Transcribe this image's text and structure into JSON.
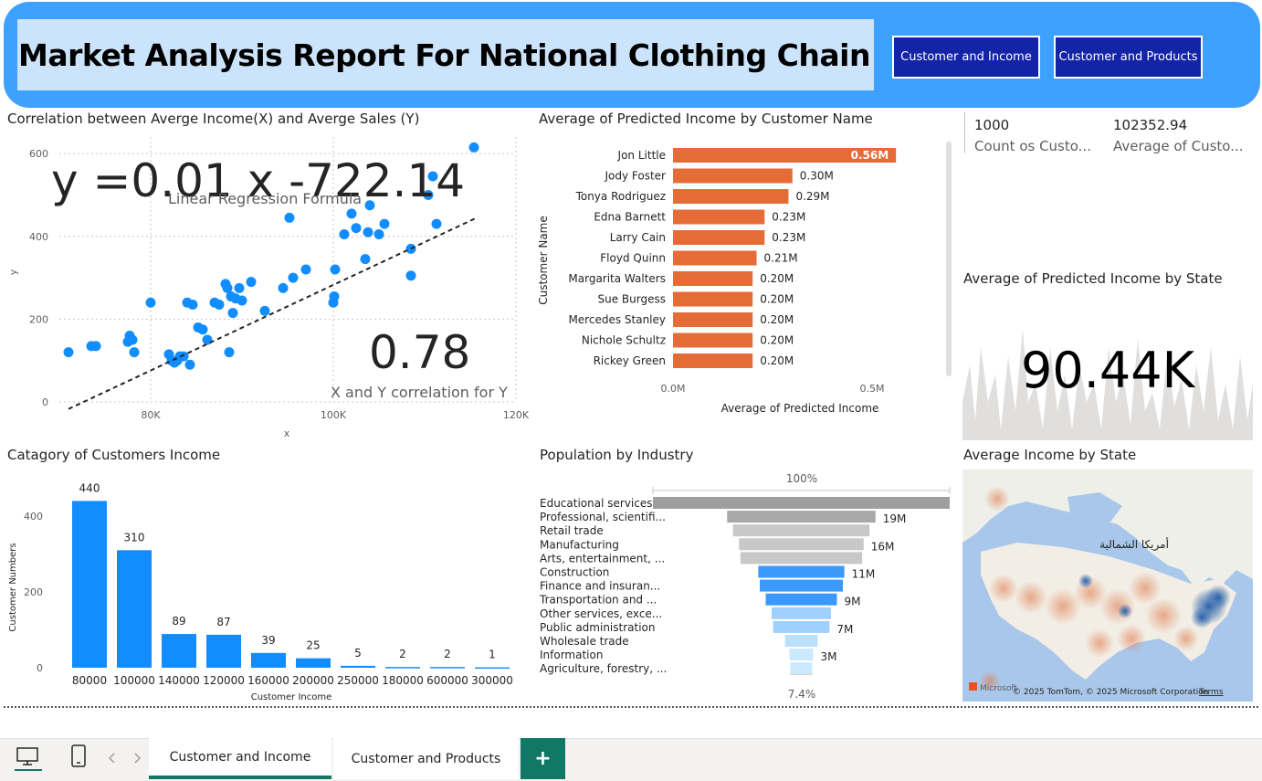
{
  "header": {
    "title": "Market Analysis Report For National Clothing Chain",
    "nav_buttons": [
      "Customer and Income",
      "Customer and Products"
    ]
  },
  "scatter": {
    "title": "Correlation between Averge Income(X) and Averge Sales (Y)",
    "formula": "y =0.01 x -722.14",
    "formula_caption": "Linear Regression Formula",
    "correlation": "0.78",
    "correlation_caption": "X and Y correlation for Y",
    "xlabel": "x",
    "ylabel": "y",
    "x_ticks": [
      "80K",
      "100K",
      "120K"
    ],
    "y_ticks": [
      "0",
      "200",
      "400",
      "600"
    ]
  },
  "bar_names": {
    "title": "Average of Predicted Income by Customer Name",
    "ylabel": "Customer Name",
    "xlabel": "Average of Predicted Income",
    "x_ticks": [
      "0.0M",
      "0.5M"
    ]
  },
  "kpis": [
    {
      "value": "1000",
      "label": "Count os Custo..."
    },
    {
      "value": "102352.94",
      "label": "Average of Custo..."
    }
  ],
  "state_card": {
    "title": "Average of Predicted Income by State",
    "value": "90.44K"
  },
  "income_category": {
    "title": "Catagory of Customers Income",
    "xlabel": "Customer Income",
    "ylabel": "Customer Numbers",
    "y_ticks": [
      "0",
      "200",
      "400"
    ]
  },
  "funnel": {
    "title": "Population by Industry",
    "top_pct": "100%",
    "bottom_pct": "7.4%"
  },
  "map": {
    "title": "Average Income by State",
    "region_label": "أمريكا الشمالية",
    "attribution": "© 2025 TomTom, © 2025 Microsoft Corporation",
    "terms": "Terms",
    "brand": "Microsoft"
  },
  "tabs": [
    "Customer and Income",
    "Customer and Products"
  ],
  "add_tab": "+",
  "colors": {
    "header": "#3fa1ff",
    "nav_button": "#1424a7",
    "scatter_point": "#118dff",
    "bar_orange": "#e66c37",
    "column_blue": "#118dff",
    "active_tab": "#117865"
  },
  "chart_data": [
    {
      "type": "scatter",
      "title": "Correlation between Averge Income(X) and Averge Sales (Y)",
      "xlabel": "x",
      "ylabel": "y",
      "xlim": [
        70000,
        120000
      ],
      "ylim": [
        0,
        640
      ],
      "x": [
        71000,
        73500,
        74000,
        77500,
        77700,
        78000,
        78200,
        80000,
        82000,
        82300,
        82600,
        82900,
        83200,
        83600,
        84000,
        84300,
        84600,
        85200,
        85700,
        86200,
        87000,
        87500,
        88200,
        88400,
        88600,
        88800,
        89000,
        89300,
        89700,
        90000,
        91000,
        92500,
        94500,
        95200,
        95600,
        97000,
        100000,
        100100,
        100200,
        101200,
        102000,
        102500,
        103500,
        103800,
        104000,
        105000,
        105600,
        108500,
        108500,
        110400,
        110900,
        111300,
        115400
      ],
      "y": [
        120,
        135,
        135,
        145,
        160,
        150,
        120,
        240,
        115,
        100,
        95,
        100,
        110,
        110,
        240,
        90,
        235,
        180,
        175,
        150,
        240,
        235,
        285,
        275,
        120,
        255,
        215,
        250,
        275,
        245,
        290,
        220,
        275,
        445,
        300,
        320,
        240,
        255,
        320,
        405,
        455,
        420,
        345,
        410,
        475,
        405,
        430,
        305,
        370,
        500,
        545,
        430,
        615
      ],
      "trendline": {
        "slope": 0.01,
        "intercept": -722.14
      }
    },
    {
      "type": "bar",
      "orientation": "horizontal",
      "title": "Average of Predicted Income by Customer Name",
      "xlabel": "Average of Predicted Income",
      "ylabel": "Customer Name",
      "categories": [
        "Jon Little",
        "Jody Foster",
        "Tonya Rodriguez",
        "Edna Barnett",
        "Larry Cain",
        "Floyd Quinn",
        "Margarita Walters",
        "Sue Burgess",
        "Mercedes Stanley",
        "Nichole Schultz",
        "Rickey Green"
      ],
      "values": [
        0.56,
        0.3,
        0.29,
        0.23,
        0.23,
        0.21,
        0.2,
        0.2,
        0.2,
        0.2,
        0.2
      ],
      "labels": [
        "0.56M",
        "0.30M",
        "0.29M",
        "0.23M",
        "0.23M",
        "0.21M",
        "0.20M",
        "0.20M",
        "0.20M",
        "0.20M",
        "0.20M"
      ],
      "xlim": [
        0,
        0.55
      ]
    },
    {
      "type": "bar",
      "title": "Catagory of Customers Income",
      "xlabel": "Customer Income",
      "ylabel": "Customer Numbers",
      "categories": [
        "80000",
        "100000",
        "140000",
        "120000",
        "160000",
        "200000",
        "250000",
        "180000",
        "600000",
        "300000"
      ],
      "values": [
        440,
        310,
        89,
        87,
        39,
        25,
        5,
        2,
        2,
        1
      ],
      "ylim": [
        0,
        480
      ]
    },
    {
      "type": "bar",
      "subtype": "funnel",
      "title": "Population by Industry",
      "categories": [
        "Educational services...",
        "Professional, scientifi...",
        "Retail trade",
        "Manufacturing",
        "Arts, entertainment, ...",
        "Construction",
        "Finance and insuran...",
        "Transportation and ...",
        "Other services, exce...",
        "Public administration",
        "Wholesale trade",
        "Information",
        "Agriculture, forestry, ..."
      ],
      "values": [
        100,
        50,
        46,
        42,
        41,
        29,
        28,
        24,
        20,
        19,
        11,
        8,
        7.4
      ],
      "labels": [
        "",
        "19M",
        "",
        "16M",
        "",
        "11M",
        "",
        "9M",
        "",
        "7M",
        "",
        "3M",
        ""
      ]
    }
  ]
}
